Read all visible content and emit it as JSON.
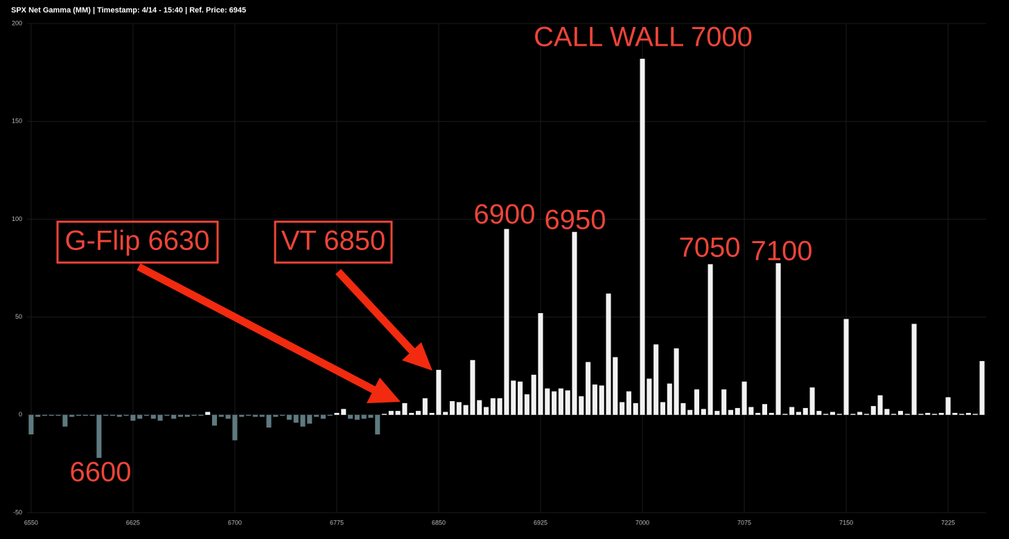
{
  "chart_data": {
    "type": "bar",
    "title": "SPX Net Gamma (MM) | Timestamp: 4/14 - 15:40  | Ref. Price: 6945",
    "x": [
      6550,
      6555,
      6560,
      6565,
      6570,
      6575,
      6580,
      6585,
      6590,
      6595,
      6600,
      6605,
      6610,
      6615,
      6620,
      6625,
      6630,
      6635,
      6640,
      6645,
      6650,
      6655,
      6660,
      6665,
      6670,
      6675,
      6680,
      6685,
      6690,
      6695,
      6700,
      6705,
      6710,
      6715,
      6720,
      6725,
      6730,
      6735,
      6740,
      6745,
      6750,
      6755,
      6760,
      6765,
      6770,
      6775,
      6780,
      6785,
      6790,
      6795,
      6800,
      6805,
      6810,
      6815,
      6820,
      6825,
      6830,
      6835,
      6840,
      6845,
      6850,
      6855,
      6860,
      6865,
      6870,
      6875,
      6880,
      6885,
      6890,
      6895,
      6900,
      6905,
      6910,
      6915,
      6920,
      6925,
      6930,
      6935,
      6940,
      6945,
      6950,
      6955,
      6960,
      6965,
      6970,
      6975,
      6980,
      6985,
      6990,
      6995,
      7000,
      7005,
      7010,
      7015,
      7020,
      7025,
      7030,
      7035,
      7040,
      7045,
      7050,
      7055,
      7060,
      7065,
      7070,
      7075,
      7080,
      7085,
      7090,
      7095,
      7100,
      7105,
      7110,
      7115,
      7120,
      7125,
      7130,
      7135,
      7140,
      7145,
      7150,
      7155,
      7160,
      7165,
      7170,
      7175,
      7180,
      7185,
      7190,
      7195,
      7200,
      7205,
      7210,
      7215,
      7220,
      7225,
      7230,
      7235,
      7240,
      7245,
      7250
    ],
    "values": [
      -10,
      -1,
      -0.5,
      -0.5,
      -0.5,
      -6,
      -1,
      -0.5,
      -0.5,
      -0.5,
      -22,
      -0.5,
      -0.5,
      -1,
      -0.5,
      -3,
      -2,
      -0.5,
      -2,
      -3,
      -0.5,
      -2,
      -1,
      -1,
      -0.5,
      -0.5,
      1.5,
      -5.5,
      -1,
      -2,
      -13,
      -1,
      -0.5,
      -1,
      -1,
      -6.5,
      -1,
      -0.5,
      -2.5,
      -4,
      -6,
      -4.5,
      -1,
      -2,
      -0.5,
      1,
      3,
      -2,
      -2.5,
      -2,
      -1.5,
      -10,
      0.5,
      2,
      2,
      6,
      1,
      2,
      8.5,
      1,
      23,
      1.5,
      7,
      6.5,
      5,
      28,
      7.5,
      4,
      8.5,
      8.5,
      95,
      17.5,
      17,
      10.5,
      20.5,
      52,
      13.5,
      12,
      13.5,
      12.5,
      93.5,
      9.5,
      27,
      15.5,
      15,
      62,
      29.5,
      6.5,
      12,
      6,
      182,
      18.5,
      36,
      6.5,
      16,
      34,
      6,
      2.5,
      13,
      3,
      77,
      2,
      13,
      2.5,
      3.5,
      17,
      4,
      1,
      5.5,
      1,
      77.5,
      0.5,
      4,
      1.5,
      3.5,
      14,
      2,
      0.5,
      1.5,
      0.5,
      49,
      0.5,
      1.5,
      0.5,
      4.5,
      10,
      3,
      0.5,
      2,
      0.5,
      46.5,
      0.5,
      1,
      0.5,
      1,
      9,
      1,
      0.5,
      1,
      0.5,
      27.5
    ],
    "colors": {
      "positive": "#f2f2f2",
      "negative": "#5e7a80"
    },
    "xlim": [
      6547,
      7253
    ],
    "xticks": [
      6550,
      6625,
      6700,
      6775,
      6850,
      6925,
      7000,
      7075,
      7150,
      7225
    ],
    "ylim": [
      -50,
      200
    ],
    "yticks": [
      -50,
      0,
      50,
      100,
      150,
      200
    ],
    "grid": true,
    "annotations": {
      "call_wall": "CALL WALL 7000",
      "s6900": "6900",
      "s6950": "6950",
      "s7050": "7050",
      "s7100": "7100",
      "s6600": "6600",
      "gflip": "G-Flip 6630",
      "vt": "VT 6850"
    }
  }
}
